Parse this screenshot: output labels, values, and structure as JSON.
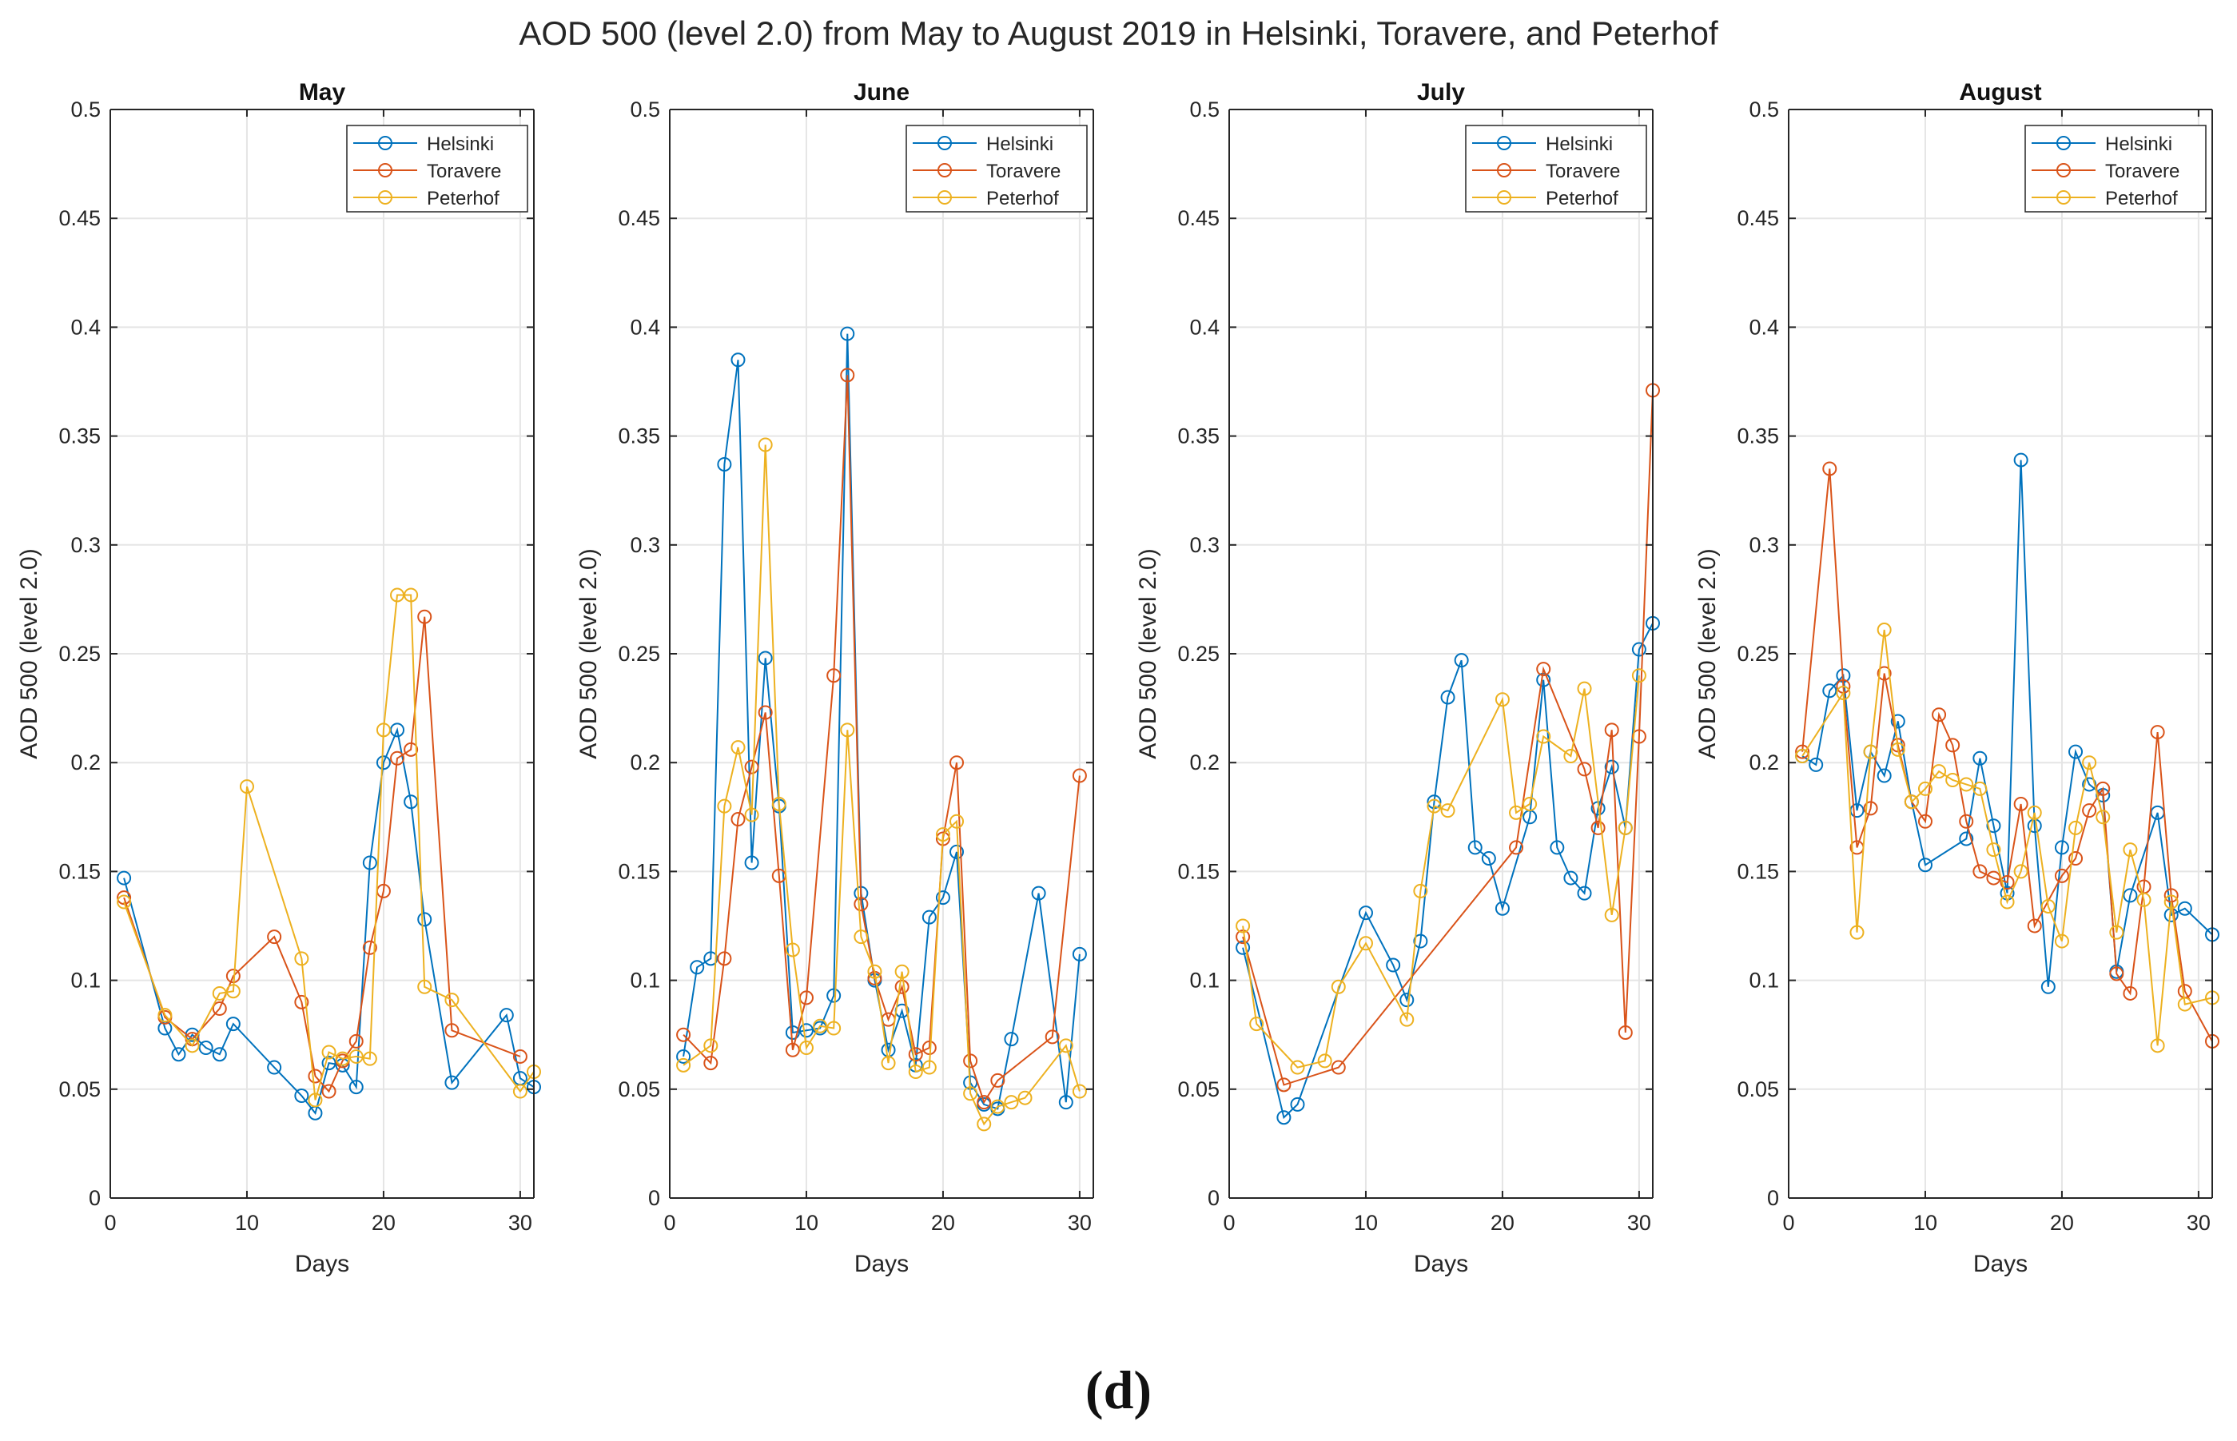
{
  "figure": {
    "title": "AOD 500 (level 2.0) from May to August 2019 in Helsinki, Toravere, and Peterhof",
    "panel_label_open": "(",
    "panel_label_letter": "d",
    "panel_label_close": ")"
  },
  "colors": {
    "Helsinki": "#0072BD",
    "Toravere": "#D95319",
    "Peterhof": "#EDB120",
    "axis": "#262626",
    "grid": "#e5e5e5"
  },
  "chart_data": [
    {
      "type": "line",
      "title": "May",
      "xlabel": "Days",
      "ylabel": "AOD 500 (level 2.0)",
      "xlim": [
        0,
        31
      ],
      "ylim": [
        0,
        0.5
      ],
      "xticks": [
        0,
        10,
        20,
        30
      ],
      "yticks": [
        0,
        0.05,
        0.1,
        0.15,
        0.2,
        0.25,
        0.3,
        0.35,
        0.4,
        0.45,
        0.5
      ],
      "legend": [
        "Helsinki",
        "Toravere",
        "Peterhof"
      ],
      "legend_position": "top-right",
      "series": [
        {
          "name": "Helsinki",
          "x": [
            1,
            4,
            5,
            6,
            7,
            8,
            9,
            12,
            14,
            15,
            16,
            17,
            18,
            19,
            20,
            21,
            22,
            23,
            25,
            29,
            30,
            31
          ],
          "values": [
            0.147,
            0.078,
            0.066,
            0.075,
            0.069,
            0.066,
            0.08,
            0.06,
            0.047,
            0.039,
            0.062,
            0.061,
            0.051,
            0.154,
            0.2,
            0.215,
            0.182,
            0.128,
            0.053,
            0.084,
            0.055,
            0.051
          ]
        },
        {
          "name": "Toravere",
          "x": [
            1,
            4,
            6,
            8,
            9,
            12,
            14,
            15,
            16,
            17,
            18,
            19,
            20,
            21,
            22,
            23,
            25,
            30
          ],
          "values": [
            0.138,
            0.083,
            0.073,
            0.087,
            0.102,
            0.12,
            0.09,
            0.056,
            0.049,
            0.063,
            0.072,
            0.115,
            0.141,
            0.202,
            0.206,
            0.267,
            0.077,
            0.065
          ]
        },
        {
          "name": "Peterhof",
          "x": [
            1,
            4,
            6,
            8,
            9,
            10,
            14,
            15,
            16,
            17,
            18,
            19,
            20,
            21,
            22,
            23,
            25,
            30,
            31
          ],
          "values": [
            0.136,
            0.084,
            0.07,
            0.094,
            0.095,
            0.189,
            0.11,
            0.045,
            0.067,
            0.064,
            0.065,
            0.064,
            0.215,
            0.277,
            0.277,
            0.097,
            0.091,
            0.049,
            0.058
          ]
        }
      ]
    },
    {
      "type": "line",
      "title": "June",
      "xlabel": "Days",
      "ylabel": "AOD 500 (level 2.0)",
      "xlim": [
        0,
        31
      ],
      "ylim": [
        0,
        0.5
      ],
      "xticks": [
        0,
        10,
        20,
        30
      ],
      "yticks": [
        0,
        0.05,
        0.1,
        0.15,
        0.2,
        0.25,
        0.3,
        0.35,
        0.4,
        0.45,
        0.5
      ],
      "legend": [
        "Helsinki",
        "Toravere",
        "Peterhof"
      ],
      "legend_position": "top-right",
      "series": [
        {
          "name": "Helsinki",
          "x": [
            1,
            2,
            3,
            4,
            5,
            6,
            7,
            8,
            9,
            10,
            11,
            12,
            13,
            14,
            15,
            16,
            17,
            18,
            19,
            20,
            21,
            22,
            23,
            24,
            25,
            27,
            29,
            30
          ],
          "values": [
            0.065,
            0.106,
            0.11,
            0.337,
            0.385,
            0.154,
            0.248,
            0.18,
            0.076,
            0.077,
            0.078,
            0.093,
            0.397,
            0.14,
            0.1,
            0.068,
            0.086,
            0.061,
            0.129,
            0.138,
            0.159,
            0.053,
            0.043,
            0.041,
            0.073,
            0.14,
            0.044,
            0.112
          ]
        },
        {
          "name": "Toravere",
          "x": [
            1,
            3,
            4,
            5,
            6,
            7,
            8,
            9,
            10,
            12,
            13,
            14,
            15,
            16,
            17,
            18,
            19,
            20,
            21,
            22,
            23,
            24,
            28,
            30
          ],
          "values": [
            0.075,
            0.062,
            0.11,
            0.174,
            0.198,
            0.223,
            0.148,
            0.068,
            0.092,
            0.24,
            0.378,
            0.135,
            0.101,
            0.082,
            0.097,
            0.066,
            0.069,
            0.165,
            0.2,
            0.063,
            0.044,
            0.054,
            0.074,
            0.194
          ]
        },
        {
          "name": "Peterhof",
          "x": [
            1,
            3,
            4,
            5,
            6,
            7,
            8,
            9,
            10,
            11,
            12,
            13,
            14,
            15,
            16,
            17,
            18,
            19,
            20,
            21,
            22,
            23,
            24,
            25,
            26,
            29,
            30
          ],
          "values": [
            0.061,
            0.07,
            0.18,
            0.207,
            0.176,
            0.346,
            0.181,
            0.114,
            0.069,
            0.079,
            0.078,
            0.215,
            0.12,
            0.104,
            0.062,
            0.104,
            0.058,
            0.06,
            0.167,
            0.173,
            0.048,
            0.034,
            0.042,
            0.044,
            0.046,
            0.07,
            0.049
          ]
        }
      ]
    },
    {
      "type": "line",
      "title": "July",
      "xlabel": "Days",
      "ylabel": "AOD 500 (level 2.0)",
      "xlim": [
        0,
        31
      ],
      "ylim": [
        0,
        0.5
      ],
      "xticks": [
        0,
        10,
        20,
        30
      ],
      "yticks": [
        0,
        0.05,
        0.1,
        0.15,
        0.2,
        0.25,
        0.3,
        0.35,
        0.4,
        0.45,
        0.5
      ],
      "legend": [
        "Helsinki",
        "Toravere",
        "Peterhof"
      ],
      "legend_position": "top-right",
      "series": [
        {
          "name": "Helsinki",
          "x": [
            1,
            4,
            5,
            10,
            12,
            13,
            14,
            15,
            16,
            17,
            18,
            19,
            20,
            22,
            23,
            24,
            25,
            26,
            27,
            28,
            29,
            30,
            31
          ],
          "values": [
            0.115,
            0.037,
            0.043,
            0.131,
            0.107,
            0.091,
            0.118,
            0.182,
            0.23,
            0.247,
            0.161,
            0.156,
            0.133,
            0.175,
            0.238,
            0.161,
            0.147,
            0.14,
            0.179,
            0.198,
            0.17,
            0.252,
            0.264
          ]
        },
        {
          "name": "Toravere",
          "x": [
            1,
            4,
            8,
            21,
            23,
            26,
            27,
            28,
            29,
            30,
            31
          ],
          "values": [
            0.12,
            0.052,
            0.06,
            0.161,
            0.243,
            0.197,
            0.17,
            0.215,
            0.076,
            0.212,
            0.371
          ]
        },
        {
          "name": "Peterhof",
          "x": [
            1,
            2,
            5,
            7,
            8,
            10,
            13,
            14,
            15,
            16,
            20,
            21,
            22,
            23,
            25,
            26,
            28,
            29,
            30
          ],
          "values": [
            0.125,
            0.08,
            0.06,
            0.063,
            0.097,
            0.117,
            0.082,
            0.141,
            0.18,
            0.178,
            0.229,
            0.177,
            0.181,
            0.212,
            0.203,
            0.234,
            0.13,
            0.17,
            0.24
          ]
        }
      ]
    },
    {
      "type": "line",
      "title": "August",
      "xlabel": "Days",
      "ylabel": "AOD 500 (level 2.0)",
      "xlim": [
        0,
        31
      ],
      "ylim": [
        0,
        0.5
      ],
      "xticks": [
        0,
        10,
        20,
        30
      ],
      "yticks": [
        0,
        0.05,
        0.1,
        0.15,
        0.2,
        0.25,
        0.3,
        0.35,
        0.4,
        0.45,
        0.5
      ],
      "legend": [
        "Helsinki",
        "Toravere",
        "Peterhof"
      ],
      "legend_position": "top-right",
      "series": [
        {
          "name": "Helsinki",
          "x": [
            1,
            2,
            3,
            4,
            5,
            6,
            7,
            8,
            9,
            10,
            13,
            14,
            15,
            16,
            17,
            18,
            19,
            20,
            21,
            22,
            23,
            24,
            25,
            27,
            28,
            29,
            31
          ],
          "values": [
            0.203,
            0.199,
            0.233,
            0.24,
            0.178,
            0.205,
            0.194,
            0.219,
            0.182,
            0.153,
            0.165,
            0.202,
            0.171,
            0.14,
            0.339,
            0.171,
            0.097,
            0.161,
            0.205,
            0.19,
            0.185,
            0.104,
            0.139,
            0.177,
            0.13,
            0.133,
            0.121
          ]
        },
        {
          "name": "Toravere",
          "x": [
            1,
            3,
            4,
            5,
            6,
            7,
            8,
            9,
            10,
            11,
            12,
            13,
            14,
            15,
            16,
            17,
            18,
            20,
            21,
            22,
            23,
            24,
            25,
            26,
            27,
            28,
            29,
            31
          ],
          "values": [
            0.205,
            0.335,
            0.235,
            0.161,
            0.179,
            0.241,
            0.208,
            0.182,
            0.173,
            0.222,
            0.208,
            0.173,
            0.15,
            0.147,
            0.145,
            0.181,
            0.125,
            0.148,
            0.156,
            0.178,
            0.188,
            0.103,
            0.094,
            0.143,
            0.214,
            0.139,
            0.095,
            0.072
          ]
        },
        {
          "name": "Peterhof",
          "x": [
            1,
            4,
            5,
            6,
            7,
            8,
            9,
            10,
            11,
            12,
            13,
            14,
            15,
            16,
            17,
            18,
            19,
            20,
            21,
            22,
            23,
            24,
            25,
            26,
            27,
            28,
            29,
            31
          ],
          "values": [
            0.203,
            0.232,
            0.122,
            0.205,
            0.261,
            0.206,
            0.182,
            0.188,
            0.196,
            0.192,
            0.19,
            0.188,
            0.16,
            0.136,
            0.15,
            0.177,
            0.134,
            0.118,
            0.17,
            0.2,
            0.175,
            0.122,
            0.16,
            0.137,
            0.07,
            0.136,
            0.089,
            0.092
          ]
        }
      ]
    }
  ]
}
